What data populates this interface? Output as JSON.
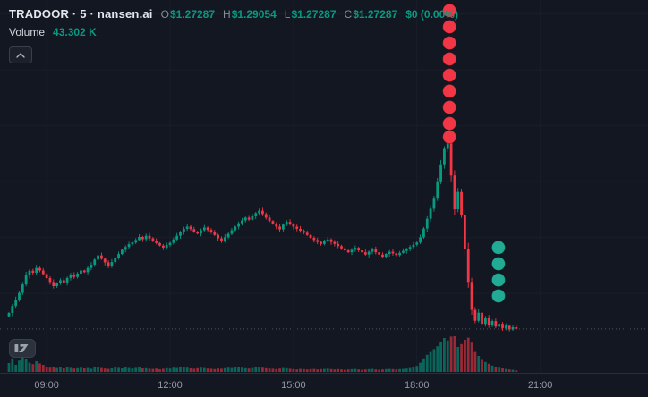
{
  "header": {
    "symbol_title": "TRADOOR · 5 · nansen.ai",
    "ohlc": [
      {
        "label": "O",
        "value": "$1.27287"
      },
      {
        "label": "H",
        "value": "$1.29054"
      },
      {
        "label": "L",
        "value": "$1.27287"
      },
      {
        "label": "C",
        "value": "$1.27287"
      }
    ],
    "change": "$0 (0.00%)",
    "volume_label": "Volume",
    "volume_value": "43.302 K"
  },
  "colors": {
    "background": "#131722",
    "up": "#089981",
    "down": "#f23645",
    "text": "#e4e7ee",
    "muted": "#9598a1",
    "grid": "#1a1e2a",
    "axis_line": "#2a2e39",
    "sell_marker": "#f23645",
    "buy_marker": "#22ab94",
    "last_price_line": "#787b86"
  },
  "chart_data": {
    "type": "candlestick",
    "symbol": "TRADOOR",
    "interval_minutes": 5,
    "start_time": "08:05",
    "price_axis": {
      "min": 1.25,
      "max": 2.45,
      "visible": false
    },
    "grid": "subtle",
    "legend_position": "top-left",
    "last_candle_ohlc": {
      "open": 1.27287,
      "high": 1.29054,
      "low": 1.27287,
      "close": 1.27287,
      "change": "$0 (0.00%)"
    },
    "last_close": 1.27287,
    "last_volume_k": 43.302,
    "time_axis_labels": [
      {
        "text": "09:00",
        "index": 11
      },
      {
        "text": "12:00",
        "index": 47
      },
      {
        "text": "15:00",
        "index": 83
      },
      {
        "text": "18:00",
        "index": 119
      },
      {
        "text": "21:00",
        "index": 155
      }
    ],
    "closes": [
      1.33,
      1.355,
      1.378,
      1.402,
      1.432,
      1.465,
      1.481,
      1.474,
      1.491,
      1.482,
      1.469,
      1.455,
      1.441,
      1.426,
      1.436,
      1.447,
      1.439,
      1.455,
      1.466,
      1.459,
      1.471,
      1.482,
      1.476,
      1.491,
      1.503,
      1.521,
      1.536,
      1.524,
      1.511,
      1.499,
      1.512,
      1.526,
      1.541,
      1.556,
      1.566,
      1.576,
      1.582,
      1.591,
      1.602,
      1.594,
      1.606,
      1.597,
      1.589,
      1.58,
      1.571,
      1.564,
      1.573,
      1.581,
      1.593,
      1.606,
      1.619,
      1.631,
      1.639,
      1.63,
      1.621,
      1.614,
      1.626,
      1.636,
      1.627,
      1.618,
      1.609,
      1.597,
      1.589,
      1.601,
      1.613,
      1.626,
      1.639,
      1.651,
      1.661,
      1.671,
      1.664,
      1.676,
      1.687,
      1.696,
      1.684,
      1.671,
      1.659,
      1.649,
      1.639,
      1.629,
      1.646,
      1.656,
      1.647,
      1.639,
      1.631,
      1.624,
      1.617,
      1.609,
      1.599,
      1.591,
      1.584,
      1.577,
      1.586,
      1.593,
      1.584,
      1.577,
      1.569,
      1.561,
      1.554,
      1.547,
      1.556,
      1.563,
      1.554,
      1.547,
      1.539,
      1.549,
      1.557,
      1.547,
      1.539,
      1.531,
      1.541,
      1.549,
      1.543,
      1.537,
      1.545,
      1.552,
      1.559,
      1.566,
      1.574,
      1.582,
      1.601,
      1.632,
      1.667,
      1.703,
      1.742,
      1.801,
      1.862,
      1.917,
      1.941,
      1.822,
      1.701,
      1.763,
      1.682,
      1.559,
      1.441,
      1.341,
      1.302,
      1.331,
      1.291,
      1.311,
      1.286,
      1.301,
      1.281,
      1.291,
      1.276,
      1.284,
      1.271,
      1.279,
      1.27287
    ],
    "volumes": [
      250,
      380,
      200,
      320,
      420,
      350,
      260,
      220,
      300,
      240,
      200,
      140,
      120,
      150,
      110,
      130,
      100,
      140,
      115,
      95,
      105,
      120,
      100,
      110,
      90,
      130,
      150,
      110,
      95,
      85,
      100,
      125,
      115,
      100,
      140,
      110,
      95,
      115,
      130,
      100,
      105,
      90,
      85,
      95,
      75,
      90,
      105,
      95,
      120,
      110,
      130,
      140,
      120,
      100,
      90,
      105,
      120,
      110,
      95,
      90,
      80,
      95,
      90,
      105,
      120,
      110,
      130,
      140,
      120,
      105,
      95,
      110,
      130,
      150,
      120,
      105,
      95,
      90,
      80,
      95,
      110,
      105,
      90,
      80,
      70,
      85,
      80,
      70,
      80,
      85,
      70,
      80,
      85,
      95,
      80,
      70,
      80,
      70,
      60,
      70,
      80,
      85,
      70,
      60,
      70,
      80,
      85,
      70,
      60,
      70,
      80,
      85,
      80,
      70,
      80,
      85,
      95,
      110,
      140,
      170,
      260,
      380,
      480,
      560,
      640,
      720,
      850,
      950,
      880,
      990,
      1000,
      700,
      780,
      900,
      960,
      820,
      560,
      450,
      340,
      280,
      230,
      180,
      150,
      120,
      100,
      85,
      70,
      60,
      43.302
    ],
    "volume_unit": "K",
    "markers": {
      "sell_dots": {
        "time_index": 128.5,
        "radius": 7.5,
        "prices": [
          2.412,
          2.354,
          2.296,
          2.239,
          2.181,
          2.124,
          2.066,
          2.008,
          1.96
        ]
      },
      "buy_dots": {
        "time_index": 142.8,
        "radius": 7.5,
        "prices": [
          1.564,
          1.506,
          1.448,
          1.391
        ]
      }
    }
  }
}
